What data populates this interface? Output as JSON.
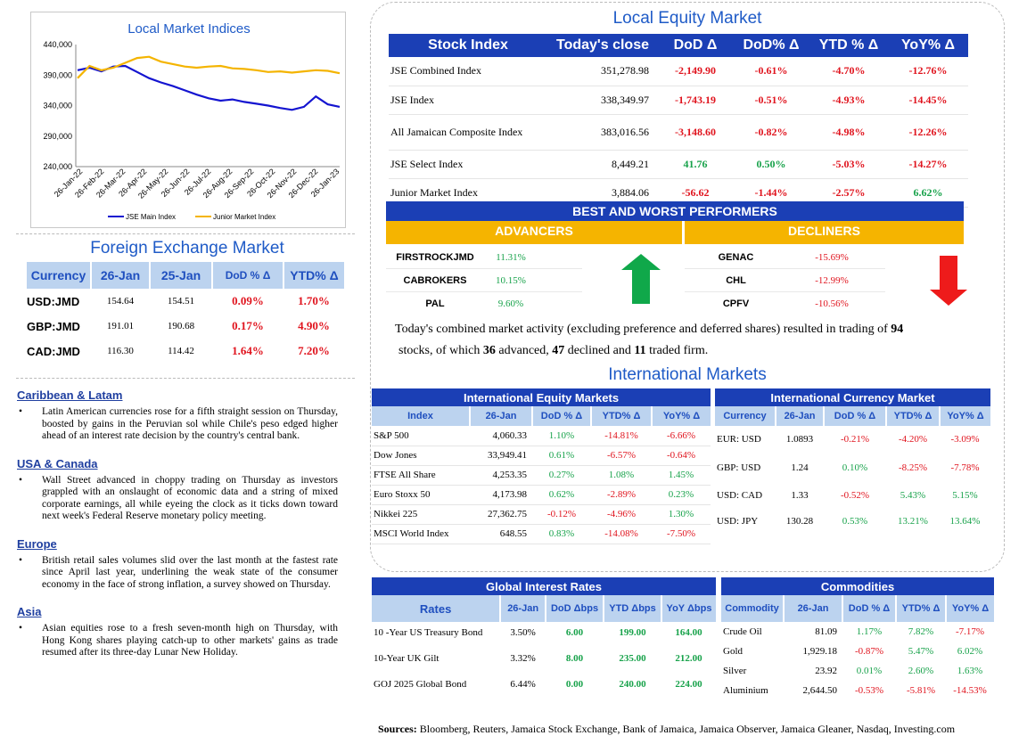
{
  "chart": {
    "title": "Local Market Indices",
    "legend": [
      "JSE Main Index",
      "Junior Market Index"
    ],
    "series_colors": [
      "#1414d0",
      "#f4b400"
    ]
  },
  "chart_data": {
    "type": "line",
    "title": "Local Market Indices",
    "ylim": [
      240000,
      440000
    ],
    "y_ticks": [
      "440,000",
      "390,000",
      "340,000",
      "290,000",
      "240,000"
    ],
    "x_ticks": [
      "26-Jan-22",
      "26-Feb-22",
      "26-Mar-22",
      "26-Apr-22",
      "26-May-22",
      "26-Jun-22",
      "26-Jul-22",
      "26-Aug-22",
      "26-Sep-22",
      "26-Oct-22",
      "26-Nov-22",
      "26-Dec-22",
      "26-Jan-23"
    ],
    "series": [
      {
        "name": "JSE Main Index",
        "values": [
          398000,
          402000,
          396000,
          404000,
          405000,
          395000,
          385000,
          378000,
          372000,
          365000,
          358000,
          352000,
          348000,
          350000,
          346000,
          343000,
          340000,
          336000,
          333000,
          338000,
          355000,
          342000,
          338000
        ]
      },
      {
        "name": "Junior Market Index",
        "values": [
          385000,
          405000,
          398000,
          402000,
          410000,
          418000,
          420000,
          412000,
          408000,
          404000,
          402000,
          404000,
          405000,
          401000,
          400000,
          398000,
          395000,
          396000,
          394000,
          396000,
          398000,
          397000,
          393000
        ]
      }
    ]
  },
  "equity": {
    "title": "Local Equity Market",
    "headers": [
      "Stock Index",
      "Today's close",
      "DoD  Δ",
      "DoD% Δ",
      "YTD % Δ",
      "YoY% Δ"
    ],
    "rows": [
      [
        "JSE Combined Index",
        "351,278.98",
        "-2,149.90",
        "-0.61%",
        "-4.70%",
        "-12.76%"
      ],
      [
        "JSE Index",
        "338,349.97",
        "-1,743.19",
        "-0.51%",
        "-4.93%",
        "-14.45%"
      ],
      [
        "All Jamaican Composite Index",
        "383,016.56",
        "-3,148.60",
        "-0.82%",
        "-4.98%",
        "-12.26%"
      ],
      [
        "JSE Select Index",
        "8,449.21",
        "41.76",
        "0.50%",
        "-5.03%",
        "-14.27%"
      ],
      [
        "Junior Market Index",
        "3,884.06",
        "-56.62",
        "-1.44%",
        "-2.57%",
        "6.62%"
      ]
    ]
  },
  "performers": {
    "title": "BEST AND WORST PERFORMERS",
    "advancers_label": "ADVANCERS",
    "decliners_label": "DECLINERS",
    "advancers": [
      [
        "FIRSTROCKJMD",
        "11.31%"
      ],
      [
        "CABROKERS",
        "10.15%"
      ],
      [
        "PAL",
        "9.60%"
      ]
    ],
    "decliners": [
      [
        "GENAC",
        "-15.69%"
      ],
      [
        "CHL",
        "-12.99%"
      ],
      [
        "CPFV",
        "-10.56%"
      ]
    ]
  },
  "summary": {
    "line1_prefix": "Today's combined market activity (excluding preference and deferred shares) resulted in trading of ",
    "traded": "94",
    "line2_prefix": "stocks, of which ",
    "advanced": "36",
    "advanced_suffix": " advanced, ",
    "declined": "47",
    "declined_suffix": " declined and ",
    "firm": "11",
    "firm_suffix": " traded firm."
  },
  "fx": {
    "title": "Foreign Exchange Market",
    "headers": [
      "Currency",
      "26-Jan",
      "25-Jan",
      "DoD % Δ",
      "YTD% Δ"
    ],
    "rows": [
      [
        "USD:JMD",
        "154.64",
        "154.51",
        "0.09%",
        "1.70%"
      ],
      [
        "GBP:JMD",
        "191.01",
        "190.68",
        "0.17%",
        "4.90%"
      ],
      [
        "CAD:JMD",
        "116.30",
        "114.42",
        "1.64%",
        "7.20%"
      ]
    ]
  },
  "news": [
    {
      "heading": "Caribbean & Latam",
      "text": "Latin American currencies rose for a fifth straight session on Thursday, boosted by gains in the Peruvian sol while Chile's peso edged higher ahead of an interest rate decision by the country's central bank."
    },
    {
      "heading": "USA & Canada",
      "text": "Wall Street advanced in choppy trading on Thursday as investors grappled with an onslaught of economic data and a string of mixed corporate earnings, all while eyeing the clock as it ticks down toward next week's Federal Reserve monetary policy meeting."
    },
    {
      "heading": "Europe",
      "text": "British retail sales volumes slid over the last month at the fastest rate since April last year, underlining the weak state of the consumer economy in the face of strong inflation, a survey showed on Thursday."
    },
    {
      "heading": "Asia",
      "text": "Asian equities rose to a fresh seven-month high on Thursday, with Hong Kong shares playing catch-up to other markets' gains as trade resumed after its three-day Lunar New Holiday."
    }
  ],
  "intl": {
    "title": "International Markets",
    "equity_title": "International Equity Markets",
    "equity_headers": [
      "Index",
      "26-Jan",
      "DoD % Δ",
      "YTD% Δ",
      "YoY% Δ"
    ],
    "equity_rows": [
      [
        "S&P 500",
        "4,060.33",
        "1.10%",
        "-14.81%",
        "-6.66%"
      ],
      [
        "Dow Jones",
        "33,949.41",
        "0.61%",
        "-6.57%",
        "-0.64%"
      ],
      [
        "FTSE All Share",
        "4,253.35",
        "0.27%",
        "1.08%",
        "1.45%"
      ],
      [
        "Euro Stoxx 50",
        "4,173.98",
        "0.62%",
        "-2.89%",
        "0.23%"
      ],
      [
        "Nikkei 225",
        "27,362.75",
        "-0.12%",
        "-4.96%",
        "1.30%"
      ],
      [
        "MSCI World Index",
        "648.55",
        "0.83%",
        "-14.08%",
        "-7.50%"
      ]
    ],
    "currency_title": "International Currency Market",
    "currency_headers": [
      "Currency",
      "26-Jan",
      "DoD % Δ",
      "YTD% Δ",
      "YoY% Δ"
    ],
    "currency_rows": [
      [
        "EUR: USD",
        "1.0893",
        "-0.21%",
        "-4.20%",
        "-3.09%"
      ],
      [
        "GBP: USD",
        "1.24",
        "0.10%",
        "-8.25%",
        "-7.78%"
      ],
      [
        "USD: CAD",
        "1.33",
        "-0.52%",
        "5.43%",
        "5.15%"
      ],
      [
        "USD: JPY",
        "130.28",
        "0.53%",
        "13.21%",
        "13.64%"
      ]
    ]
  },
  "rates": {
    "title": "Global Interest Rates",
    "headers": [
      "Rates",
      "26-Jan",
      "DoD Δbps",
      "YTD Δbps",
      "YoY Δbps"
    ],
    "rows": [
      [
        "10 -Year US Treasury Bond",
        "3.50%",
        "6.00",
        "199.00",
        "164.00"
      ],
      [
        "10-Year UK Gilt",
        "3.32%",
        "8.00",
        "235.00",
        "212.00"
      ],
      [
        "GOJ 2025 Global Bond",
        "6.44%",
        "0.00",
        "240.00",
        "224.00"
      ]
    ]
  },
  "commodities": {
    "title": "Commodities",
    "headers": [
      "Commodity",
      "26-Jan",
      "DoD % Δ",
      "YTD% Δ",
      "YoY% Δ"
    ],
    "rows": [
      [
        "Crude Oil",
        "81.09",
        "1.17%",
        "7.82%",
        "-7.17%"
      ],
      [
        "Gold",
        "1,929.18",
        "-0.87%",
        "5.47%",
        "6.02%"
      ],
      [
        "Silver",
        "23.92",
        "0.01%",
        "2.60%",
        "1.63%"
      ],
      [
        "Aluminium",
        "2,644.50",
        "-0.53%",
        "-5.81%",
        "-14.53%"
      ]
    ]
  },
  "sources": {
    "label": "Sources:",
    "text": " Bloomberg, Reuters, Jamaica Stock Exchange, Bank of Jamaica, Jamaica Observer, Jamaica Gleaner, Nasdaq, Investing.com"
  }
}
